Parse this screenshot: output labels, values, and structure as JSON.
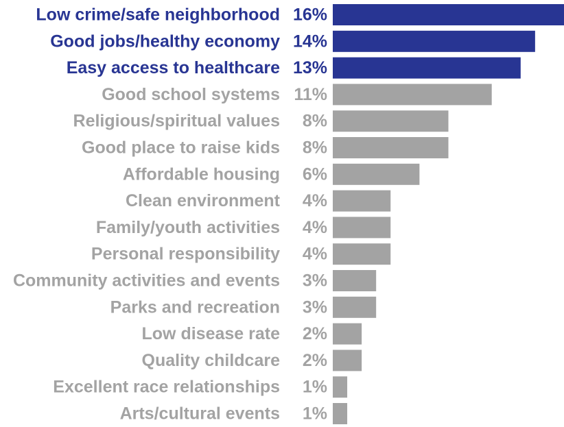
{
  "chart_data": {
    "type": "bar",
    "orientation": "horizontal",
    "title": "",
    "xlabel": "",
    "ylabel": "",
    "categories": [
      "Low crime/safe neighborhood",
      "Good jobs/healthy economy",
      "Easy access to healthcare",
      "Good school systems",
      "Religious/spiritual values",
      "Good place to raise kids",
      "Affordable housing",
      "Clean environment",
      "Family/youth activities",
      "Personal responsibility",
      "Community activities and events",
      "Parks and recreation",
      "Low disease rate",
      "Quality childcare",
      "Excellent race relationships",
      "Arts/cultural events"
    ],
    "values": [
      16,
      14,
      13,
      11,
      8,
      8,
      6,
      4,
      4,
      4,
      3,
      3,
      2,
      2,
      1,
      1
    ],
    "value_labels": [
      "16%",
      "14%",
      "13%",
      "11%",
      "8%",
      "8%",
      "6%",
      "4%",
      "4%",
      "4%",
      "3%",
      "3%",
      "2%",
      "2%",
      "1%",
      "1%"
    ],
    "highlighted": [
      true,
      true,
      true,
      false,
      false,
      false,
      false,
      false,
      false,
      false,
      false,
      false,
      false,
      false,
      false,
      false
    ],
    "xlim": [
      0,
      16
    ],
    "grid": false,
    "legend": "none"
  },
  "colors": {
    "highlight": "#283593",
    "normal": "#a3a3a3"
  }
}
